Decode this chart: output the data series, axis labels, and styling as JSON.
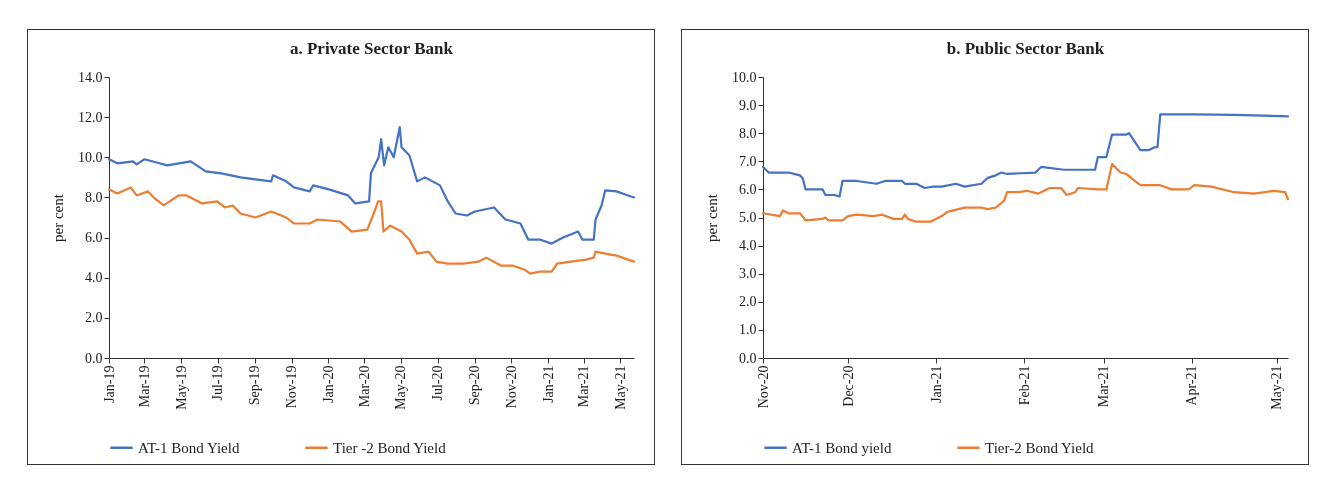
{
  "chart_data": [
    {
      "type": "line",
      "title": "a. Private Sector Bank",
      "ylabel": "per cent",
      "legend": "bottom",
      "xlim": [
        "2019-01-01",
        "2021-05-24"
      ],
      "xticks": [
        {
          "value": "2019-01-01",
          "label": "Jan-19"
        },
        {
          "value": "2019-03-01",
          "label": "Mar-19"
        },
        {
          "value": "2019-05-01",
          "label": "May-19"
        },
        {
          "value": "2019-07-01",
          "label": "Jul-19"
        },
        {
          "value": "2019-09-01",
          "label": "Sep-19"
        },
        {
          "value": "2019-11-01",
          "label": "Nov-19"
        },
        {
          "value": "2020-01-01",
          "label": "Jan-20"
        },
        {
          "value": "2020-03-01",
          "label": "Mar-20"
        },
        {
          "value": "2020-05-01",
          "label": "May-20"
        },
        {
          "value": "2020-07-01",
          "label": "Jul-20"
        },
        {
          "value": "2020-09-01",
          "label": "Sep-20"
        },
        {
          "value": "2020-11-01",
          "label": "Nov-20"
        },
        {
          "value": "2021-01-01",
          "label": "Jan-21"
        },
        {
          "value": "2021-03-01",
          "label": "Mar-21"
        },
        {
          "value": "2021-05-01",
          "label": "May-21"
        }
      ],
      "ylim": [
        0,
        14
      ],
      "yticks": [
        {
          "value": 0,
          "label": "0.0"
        },
        {
          "value": 2,
          "label": "2.0"
        },
        {
          "value": 4,
          "label": "4.0"
        },
        {
          "value": 6,
          "label": "6.0"
        },
        {
          "value": 8,
          "label": "8.0"
        },
        {
          "value": 10,
          "label": "10.0"
        },
        {
          "value": 12,
          "label": "12.0"
        },
        {
          "value": 14,
          "label": "14.0"
        }
      ],
      "series": [
        {
          "name": "AT-1 Bond Yield",
          "color": "#4472c4",
          "x": [
            "2019-01-01",
            "2019-01-15",
            "2019-02-10",
            "2019-02-16",
            "2019-03-01",
            "2019-03-26",
            "2019-04-08",
            "2019-05-17",
            "2019-06-11",
            "2019-07-07",
            "2019-08-08",
            "2019-09-02",
            "2019-09-28",
            "2019-10-01",
            "2019-10-23",
            "2019-11-05",
            "2019-12-01",
            "2019-12-07",
            "2020-01-02",
            "2020-02-03",
            "2020-02-15",
            "2020-03-09",
            "2020-03-12",
            "2020-03-25",
            "2020-03-29",
            "2020-04-03",
            "2020-04-10",
            "2020-04-19",
            "2020-04-29",
            "2020-05-02",
            "2020-05-15",
            "2020-05-28",
            "2020-06-10",
            "2020-07-05",
            "2020-07-18",
            "2020-07-31",
            "2020-08-19",
            "2020-09-01",
            "2020-10-03",
            "2020-10-22",
            "2020-11-16",
            "2020-11-29",
            "2020-12-18",
            "2021-01-07",
            "2021-01-26",
            "2021-02-20",
            "2021-02-27",
            "2021-03-18",
            "2021-03-21",
            "2021-03-31",
            "2021-04-06",
            "2021-04-25",
            "2021-05-14",
            "2021-05-24"
          ],
          "values": [
            9.9,
            9.7,
            9.8,
            9.65,
            9.9,
            9.7,
            9.6,
            9.8,
            9.3,
            9.2,
            9.0,
            8.9,
            8.8,
            9.1,
            8.8,
            8.5,
            8.3,
            8.6,
            8.4,
            8.1,
            7.7,
            7.8,
            9.2,
            10.0,
            10.9,
            9.6,
            10.5,
            10.0,
            11.5,
            10.5,
            10.1,
            8.8,
            9.0,
            8.6,
            7.8,
            7.2,
            7.1,
            7.3,
            7.5,
            6.9,
            6.7,
            5.9,
            5.9,
            5.7,
            6.0,
            6.3,
            5.9,
            5.9,
            6.9,
            7.6,
            8.35,
            8.3,
            8.1,
            8.0
          ]
        },
        {
          "name": "Tier -2  Bond Yield",
          "color": "#ed7d31",
          "x": [
            "2019-01-01",
            "2019-01-15",
            "2019-02-06",
            "2019-02-16",
            "2019-03-07",
            "2019-03-20",
            "2019-04-02",
            "2019-04-27",
            "2019-05-10",
            "2019-06-05",
            "2019-06-30",
            "2019-07-13",
            "2019-07-26",
            "2019-08-08",
            "2019-09-02",
            "2019-09-28",
            "2019-10-23",
            "2019-11-05",
            "2019-12-01",
            "2019-12-14",
            "2020-01-21",
            "2020-02-09",
            "2020-03-06",
            "2020-03-18",
            "2020-03-24",
            "2020-03-29",
            "2020-04-02",
            "2020-04-13",
            "2020-04-19",
            "2020-05-02",
            "2020-05-15",
            "2020-05-28",
            "2020-06-16",
            "2020-06-29",
            "2020-07-18",
            "2020-08-13",
            "2020-09-07",
            "2020-09-20",
            "2020-10-15",
            "2020-11-04",
            "2020-11-23",
            "2020-12-02",
            "2020-12-18",
            "2021-01-07",
            "2021-01-16",
            "2021-02-08",
            "2021-03-05",
            "2021-03-18",
            "2021-03-21",
            "2021-04-06",
            "2021-04-25",
            "2021-05-14",
            "2021-05-24"
          ],
          "values": [
            8.4,
            8.2,
            8.5,
            8.1,
            8.3,
            7.9,
            7.6,
            8.1,
            8.1,
            7.7,
            7.8,
            7.5,
            7.6,
            7.2,
            7.0,
            7.3,
            7.0,
            6.7,
            6.7,
            6.9,
            6.8,
            6.3,
            6.4,
            7.3,
            7.8,
            7.8,
            6.3,
            6.6,
            6.5,
            6.3,
            5.9,
            5.2,
            5.3,
            4.8,
            4.7,
            4.7,
            4.8,
            5.0,
            4.6,
            4.6,
            4.4,
            4.2,
            4.3,
            4.3,
            4.7,
            4.8,
            4.9,
            5.0,
            5.3,
            5.2,
            5.1,
            4.9,
            4.8
          ]
        }
      ]
    },
    {
      "type": "line",
      "title": "b. Public Sector Bank",
      "ylabel": "per cent",
      "legend": "bottom",
      "xlim": [
        "2020-11-01",
        "2021-05-05"
      ],
      "xticks": [
        {
          "value": "2020-11-01",
          "label": "Nov-20"
        },
        {
          "value": "2020-12-01",
          "label": "Dec-20"
        },
        {
          "value": "2021-01-01",
          "label": "Jan-21"
        },
        {
          "value": "2021-02-01",
          "label": "Feb-21"
        },
        {
          "value": "2021-03-01",
          "label": "Mar-21"
        },
        {
          "value": "2021-04-01",
          "label": "Apr-21"
        },
        {
          "value": "2021-05-01",
          "label": "May-21"
        }
      ],
      "ylim": [
        0,
        10
      ],
      "yticks": [
        {
          "value": 0,
          "label": "0.0"
        },
        {
          "value": 1,
          "label": "1.0"
        },
        {
          "value": 2,
          "label": "2.0"
        },
        {
          "value": 3,
          "label": "3.0"
        },
        {
          "value": 4,
          "label": "4.0"
        },
        {
          "value": 5,
          "label": "5.0"
        },
        {
          "value": 6,
          "label": "6.0"
        },
        {
          "value": 7,
          "label": "7.0"
        },
        {
          "value": 8,
          "label": "8.0"
        },
        {
          "value": 9,
          "label": "9.0"
        },
        {
          "value": 10,
          "label": "10.0"
        }
      ],
      "series": [
        {
          "name": "AT-1 Bond yield",
          "color": "#4472c4",
          "x": [
            "2020-11-01",
            "2020-11-03",
            "2020-11-10",
            "2020-11-14",
            "2020-11-15",
            "2020-11-16",
            "2020-11-22",
            "2020-11-23",
            "2020-11-26",
            "2020-11-28",
            "2020-11-29",
            "2020-12-04",
            "2020-12-11",
            "2020-12-14",
            "2020-12-20",
            "2020-12-21",
            "2020-12-25",
            "2020-12-28",
            "2020-12-31",
            "2021-01-03",
            "2021-01-08",
            "2021-01-11",
            "2021-01-17",
            "2021-01-19",
            "2021-01-22",
            "2021-01-24",
            "2021-01-26",
            "2021-02-05",
            "2021-02-07",
            "2021-02-15",
            "2021-02-26",
            "2021-02-27",
            "2021-03-02",
            "2021-03-04",
            "2021-03-09",
            "2021-03-10",
            "2021-03-13",
            "2021-03-14",
            "2021-03-17",
            "2021-03-19",
            "2021-03-20",
            "2021-03-21",
            "2021-04-02",
            "2021-04-16",
            "2021-05-05"
          ],
          "values": [
            6.8,
            6.6,
            6.6,
            6.5,
            6.4,
            6.0,
            6.0,
            5.8,
            5.8,
            5.75,
            6.3,
            6.3,
            6.2,
            6.3,
            6.3,
            6.2,
            6.2,
            6.05,
            6.1,
            6.1,
            6.2,
            6.1,
            6.2,
            6.4,
            6.5,
            6.6,
            6.55,
            6.6,
            6.8,
            6.7,
            6.7,
            7.15,
            7.15,
            7.95,
            7.95,
            8.0,
            7.55,
            7.4,
            7.4,
            7.5,
            7.5,
            8.67,
            8.67,
            8.65,
            8.6
          ]
        },
        {
          "name": "Tier-2 Bond Yield",
          "color": "#ed7d31",
          "x": [
            "2020-11-01",
            "2020-11-07",
            "2020-11-08",
            "2020-11-10",
            "2020-11-14",
            "2020-11-16",
            "2020-11-22",
            "2020-11-23",
            "2020-11-24",
            "2020-11-29",
            "2020-12-01",
            "2020-12-04",
            "2020-12-10",
            "2020-12-13",
            "2020-12-17",
            "2020-12-20",
            "2020-12-21",
            "2020-12-22",
            "2020-12-25",
            "2020-12-30",
            "2021-01-03",
            "2021-01-05",
            "2021-01-11",
            "2021-01-17",
            "2021-01-19",
            "2021-01-22",
            "2021-01-25",
            "2021-01-26",
            "2021-01-30",
            "2021-02-02",
            "2021-02-06",
            "2021-02-07",
            "2021-02-10",
            "2021-02-14",
            "2021-02-16",
            "2021-02-19",
            "2021-02-20",
            "2021-02-27",
            "2021-03-02",
            "2021-03-04",
            "2021-03-07",
            "2021-03-09",
            "2021-03-12",
            "2021-03-14",
            "2021-03-21",
            "2021-03-25",
            "2021-03-31",
            "2021-04-02",
            "2021-04-08",
            "2021-04-16",
            "2021-04-23",
            "2021-04-30",
            "2021-05-04",
            "2021-05-05"
          ],
          "values": [
            5.15,
            5.05,
            5.25,
            5.15,
            5.15,
            4.9,
            4.95,
            5.0,
            4.9,
            4.9,
            5.05,
            5.1,
            5.05,
            5.1,
            4.95,
            4.95,
            5.1,
            4.95,
            4.85,
            4.85,
            5.05,
            5.2,
            5.35,
            5.35,
            5.3,
            5.35,
            5.6,
            5.9,
            5.9,
            5.95,
            5.85,
            5.9,
            6.05,
            6.05,
            5.8,
            5.9,
            6.05,
            6.0,
            6.0,
            6.9,
            6.6,
            6.55,
            6.3,
            6.15,
            6.15,
            6.0,
            6.0,
            6.15,
            6.1,
            5.9,
            5.85,
            5.95,
            5.9,
            5.65
          ]
        }
      ]
    }
  ]
}
